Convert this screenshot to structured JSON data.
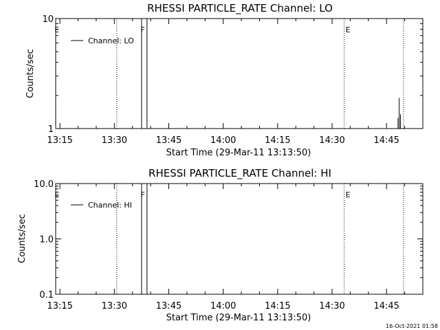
{
  "footer": {
    "timestamp": "16-Oct-2021 01:58"
  },
  "chart_data": [
    {
      "type": "line",
      "title": "RHESSI PARTICLE_RATE Channel: LO",
      "xlabel": "Start Time (29-Mar-11 13:13:50)",
      "ylabel": "Counts/sec",
      "yscale": "log",
      "xlim": [
        "13:13:50",
        "14:55:00"
      ],
      "ylim": [
        1,
        10
      ],
      "x_ticks": [
        "13:15",
        "13:30",
        "13:45",
        "14:00",
        "14:15",
        "14:30",
        "14:45"
      ],
      "y_ticks": [
        "1",
        "10"
      ],
      "legend": {
        "location": "upper-left"
      },
      "series": [
        {
          "name": "Channel: LO",
          "style": "solid",
          "points": [
            {
              "x": "13:37:30",
              "y": 10
            },
            {
              "x": "13:39:00",
              "y": 10
            },
            {
              "x": "14:48:10",
              "y": 1.25
            },
            {
              "x": "14:48:30",
              "y": 1.9
            },
            {
              "x": "14:48:50",
              "y": 1.35
            }
          ]
        }
      ],
      "event_lines": [
        {
          "x": "13:30:40",
          "label": ""
        },
        {
          "x": "14:33:20",
          "label": "E"
        },
        {
          "x": "14:49:40",
          "label": ""
        }
      ],
      "markers": [
        {
          "x": "13:14:10",
          "label": "E"
        },
        {
          "x": "13:37:50",
          "label": "F"
        }
      ]
    },
    {
      "type": "line",
      "title": "RHESSI PARTICLE_RATE Channel: HI",
      "xlabel": "Start Time (29-Mar-11 13:13:50)",
      "ylabel": "Counts/sec",
      "yscale": "log",
      "xlim": [
        "13:13:50",
        "14:55:00"
      ],
      "ylim": [
        0.1,
        10
      ],
      "x_ticks": [
        "13:15",
        "13:30",
        "13:45",
        "14:00",
        "14:15",
        "14:30",
        "14:45"
      ],
      "y_ticks": [
        "0.1",
        "1.0",
        "10.0"
      ],
      "legend": {
        "location": "upper-left"
      },
      "series": [
        {
          "name": "Channel: HI",
          "style": "solid",
          "points": [
            {
              "x": "13:37:30",
              "y": 10
            },
            {
              "x": "13:39:00",
              "y": 10
            }
          ]
        }
      ],
      "event_lines": [
        {
          "x": "13:30:40",
          "label": ""
        },
        {
          "x": "14:33:20",
          "label": "E"
        },
        {
          "x": "14:49:40",
          "label": ""
        }
      ],
      "markers": [
        {
          "x": "13:14:10",
          "label": "E"
        },
        {
          "x": "13:37:50",
          "label": "F"
        }
      ]
    }
  ]
}
